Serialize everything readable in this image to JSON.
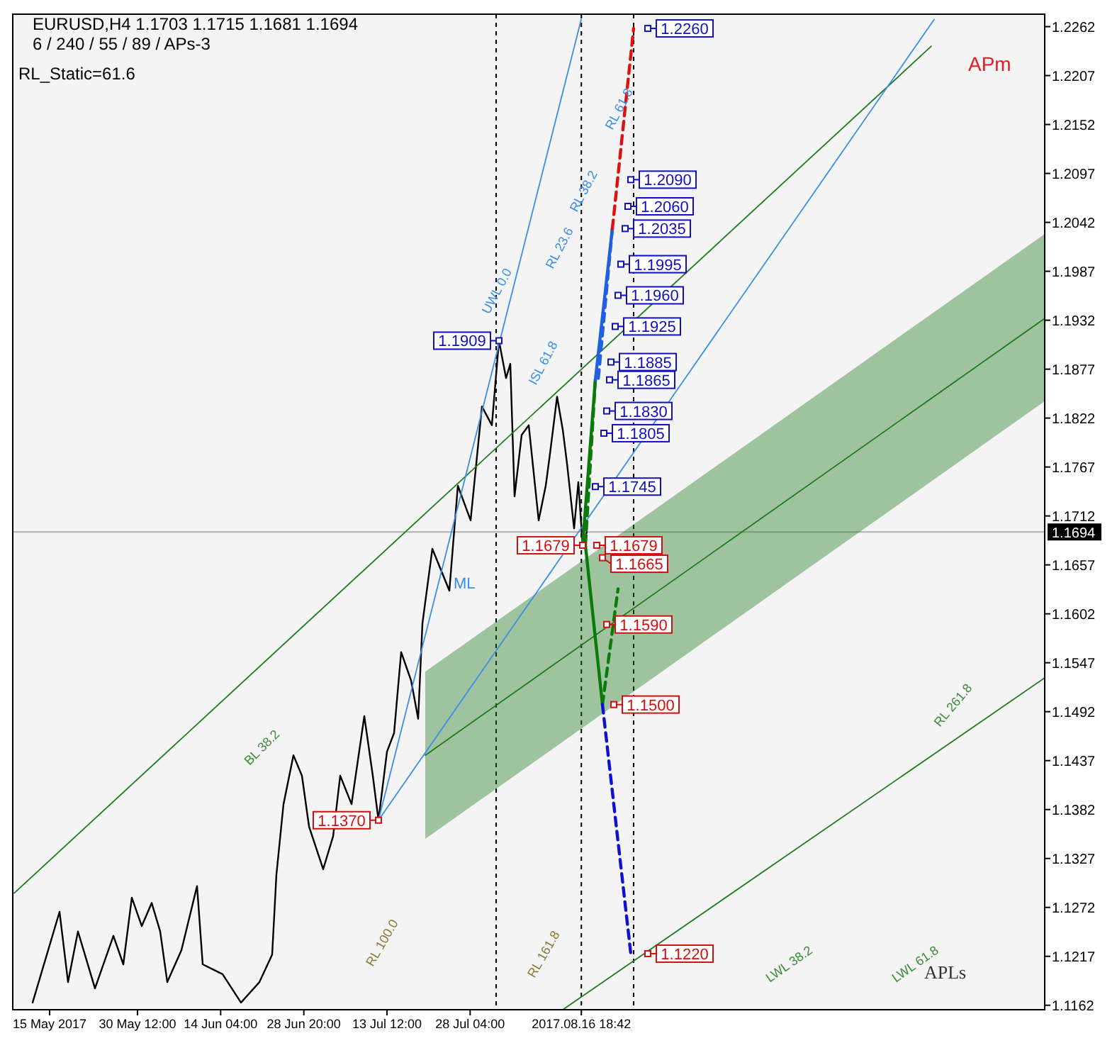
{
  "chart_data": {
    "type": "line",
    "title": "EURUSD,H4  1.1703 1.1715 1.1681 1.1694",
    "subtitle": "6 / 240 / 55 / 89 / APs-3",
    "annotations": [
      "RL_Static=61.6",
      "APm",
      "APLs",
      "UWL 0.0",
      "RL 61.8",
      "RL 38.2",
      "RL 23.6",
      "ISL 61.8",
      "ML",
      "BL 38.2",
      "RL 100.0",
      "RL 161.8",
      "RL 261.8",
      "LWL 38.2",
      "LWL 61.8"
    ],
    "xlim": [
      "2017-05-08T12:00",
      "2017-11-06T12:00"
    ],
    "ylim": [
      1.1157,
      1.2276
    ],
    "xticks": [
      {
        "value": "2017-05-15T00:00",
        "label": "15 May 2017"
      },
      {
        "value": "2017-05-30T12:00",
        "label": "30 May 12:00"
      },
      {
        "value": "2017-06-14T04:00",
        "label": "14 Jun 04:00"
      },
      {
        "value": "2017-06-28T20:00",
        "label": "28 Jun 20:00"
      },
      {
        "value": "2017-07-13T12:00",
        "label": "13 Jul 12:00"
      },
      {
        "value": "2017-07-28T04:00",
        "label": "28 Jul 04:00"
      },
      {
        "value": "2017-08-16T18:42",
        "label": "2017.08.16 18:42"
      }
    ],
    "yticks": [
      1.1162,
      1.1217,
      1.1272,
      1.1327,
      1.1382,
      1.1437,
      1.1492,
      1.1547,
      1.1602,
      1.1657,
      1.1712,
      1.1767,
      1.1822,
      1.1877,
      1.1932,
      1.1987,
      1.2042,
      1.2097,
      1.2152,
      1.2207,
      1.2262
    ],
    "ref_lines": [
      {
        "axis": "y",
        "value": 1.1694,
        "label": "1.1694",
        "color": "#b0b0b0",
        "line_style": "solid"
      },
      {
        "axis": "x",
        "value": "2017-08-01T18:00",
        "label": null,
        "color": "#000000",
        "line_style": "dashed"
      },
      {
        "axis": "x",
        "value": "2017-08-16T18:42",
        "label": null,
        "color": "#000000",
        "line_style": "dashed"
      },
      {
        "axis": "x",
        "value": "2017-08-26T00:00",
        "label": null,
        "color": "#000000",
        "line_style": "dashed"
      }
    ],
    "legend": false,
    "series": [
      {
        "color": "#000000",
        "line_style": "solid",
        "x": [
          "2017-05-12T00:00",
          "2017-05-16T18:00",
          "2017-05-18T06:00",
          "2017-05-20T00:00",
          "2017-05-23T00:00",
          "2017-05-26T06:00",
          "2017-05-28T00:00",
          "2017-05-29T12:00",
          "2017-05-31T06:00",
          "2017-06-02T00:00",
          "2017-06-03T12:00",
          "2017-06-04T18:00",
          "2017-06-07T06:00",
          "2017-06-10T00:00",
          "2017-06-11T00:00",
          "2017-06-14T12:00",
          "2017-06-17T18:00",
          "2017-06-21T00:00",
          "2017-06-23T06:00",
          "2017-06-24T00:00",
          "2017-06-25T06:00",
          "2017-06-27T00:00",
          "2017-06-28T12:00",
          "2017-06-29T18:00",
          "2017-07-02T06:00",
          "2017-07-04T00:00",
          "2017-07-05T06:00",
          "2017-07-07T06:00",
          "2017-07-09T12:00",
          "2017-07-11T00:00",
          "2017-07-12T00:00",
          "2017-07-13T12:00",
          "2017-07-14T18:00",
          "2017-07-16T00:00",
          "2017-07-17T18:00",
          "2017-07-19T00:00",
          "2017-07-19T18:00",
          "2017-07-21T12:00",
          "2017-07-24T12:00",
          "2017-07-26T00:00",
          "2017-07-28T06:00",
          "2017-07-30T06:00",
          "2017-08-01T00:00",
          "2017-08-02T06:00",
          "2017-08-03T12:00",
          "2017-08-04T06:00",
          "2017-08-05T00:00",
          "2017-08-06T06:00",
          "2017-08-07T12:00",
          "2017-08-09T06:00",
          "2017-08-10T12:00",
          "2017-08-11T06:00",
          "2017-08-12T12:00",
          "2017-08-13T12:00",
          "2017-08-14T06:00",
          "2017-08-15T12:00",
          "2017-08-16T06:00",
          "2017-08-17T00:00",
          "2017-08-17T18:00"
        ],
        "values": [
          1.1165,
          1.1267,
          1.1188,
          1.1245,
          1.1181,
          1.124,
          1.1208,
          1.1283,
          1.1251,
          1.1277,
          1.1245,
          1.1188,
          1.1224,
          1.1296,
          1.1208,
          1.1197,
          1.1165,
          1.1188,
          1.1219,
          1.1309,
          1.1388,
          1.1443,
          1.142,
          1.1363,
          1.1315,
          1.1352,
          1.142,
          1.1388,
          1.1487,
          1.142,
          1.137,
          1.1447,
          1.1468,
          1.1559,
          1.1527,
          1.1484,
          1.1591,
          1.1675,
          1.1628,
          1.1746,
          1.1707,
          1.1835,
          1.1814,
          1.1909,
          1.1867,
          1.1883,
          1.1734,
          1.1803,
          1.1814,
          1.1707,
          1.1746,
          1.1782,
          1.1846,
          1.1809,
          1.1771,
          1.1698,
          1.175,
          1.1679,
          1.1694
        ]
      },
      {
        "color": "#1e7b1e",
        "line_style": "solid",
        "x": [
          "2017-07-20T06:00",
          "2017-11-06T12:00"
        ],
        "values": [
          1.1443,
          1.1934
        ],
        "lower": [
          1.1349,
          1.1841
        ],
        "upper": [
          1.1537,
          1.2029
        ]
      },
      {
        "color": "#1e7b1e",
        "line_style": "solid",
        "x": [
          "2017-05-08T18:00",
          "2017-10-17T12:00"
        ],
        "values": [
          1.1288,
          1.224
        ]
      },
      {
        "color": "#1e7b1e",
        "line_style": "solid",
        "x": [
          "2017-08-13T12:00",
          "2017-11-06T12:00"
        ],
        "values": [
          1.1157,
          1.153
        ]
      },
      {
        "color": "#3a8ee6",
        "line_style": "solid",
        "x": [
          "2017-07-12T00:00",
          "2017-08-16T18:00"
        ],
        "values": [
          1.137,
          1.227
        ]
      },
      {
        "color": "#3a8ee6",
        "line_style": "solid",
        "x": [
          "2017-07-12T00:00",
          "2017-10-18T00:00"
        ],
        "values": [
          1.137,
          1.227
        ]
      },
      {
        "color": "#0b7a0b",
        "line_style": "solid",
        "x": [
          "2017-08-17T00:00",
          "2017-08-19T06:00"
        ],
        "values": [
          1.1679,
          1.1865
        ]
      },
      {
        "color": "#0b7a0b",
        "line_style": "solid",
        "x": [
          "2017-08-17T12:00",
          "2017-08-20T12:00"
        ],
        "values": [
          1.1679,
          1.15
        ]
      },
      {
        "color": "#0b7a0b",
        "line_style": "dashed",
        "x": [
          "2017-08-19T06:00",
          "2017-08-17T12:00"
        ],
        "values": [
          1.1865,
          1.1679
        ]
      },
      {
        "color": "#0b7a0b",
        "line_style": "dashed",
        "x": [
          "2017-08-20T12:00",
          "2017-08-23T06:00"
        ],
        "values": [
          1.15,
          1.163
        ]
      },
      {
        "color": "#2060e0",
        "line_style": "solid",
        "x": [
          "2017-08-19T06:00",
          "2017-08-22T06:00"
        ],
        "values": [
          1.1865,
          1.2035
        ]
      },
      {
        "color": "#2060e0",
        "line_style": "dashed",
        "x": [
          "2017-08-22T06:00",
          "2017-08-19T18:00"
        ],
        "values": [
          1.2035,
          1.1865
        ]
      },
      {
        "color": "#e01010",
        "line_style": "dashed",
        "x": [
          "2017-08-22T06:00",
          "2017-08-26T00:00"
        ],
        "values": [
          1.2035,
          1.226
        ]
      },
      {
        "color": "#1010d0",
        "line_style": "dashed",
        "x": [
          "2017-08-20T12:00",
          "2017-08-25T12:00"
        ],
        "values": [
          1.15,
          1.122
        ]
      },
      {
        "type": "scatter",
        "color": "#1010c0",
        "x": [
          "2017-08-28T12:00",
          "2017-08-25T12:00",
          "2017-08-25T00:00",
          "2017-08-24T12:00",
          "2017-08-23T18:00",
          "2017-08-23T06:00",
          "2017-08-22T18:00",
          "2017-08-22T00:00",
          "2017-08-21T18:00",
          "2017-08-21T06:00",
          "2017-08-20T18:00",
          "2017-08-19T06:00",
          "2017-08-02T06:00"
        ],
        "values": [
          1.226,
          1.209,
          1.206,
          1.2035,
          1.1995,
          1.196,
          1.1925,
          1.1885,
          1.1865,
          1.183,
          1.1805,
          1.1745,
          1.1909
        ],
        "value_labels": [
          "1.2260",
          "1.2090",
          "1.2060",
          "1.2035",
          "1.1995",
          "1.1960",
          "1.1925",
          "1.1885",
          "1.1865",
          "1.1830",
          "1.1805",
          "1.1745",
          "1.1909"
        ]
      },
      {
        "type": "scatter",
        "color": "#d01010",
        "x": [
          "2017-08-17T00:00",
          "2017-08-19T12:00",
          "2017-08-20T12:00",
          "2017-08-21T06:00",
          "2017-08-22T12:00",
          "2017-08-28T12:00",
          "2017-07-12T00:00"
        ],
        "values": [
          1.1679,
          1.1679,
          1.1665,
          1.159,
          1.15,
          1.122,
          1.137
        ],
        "value_labels": [
          "1.1679",
          "1.1679",
          "1.1665",
          "1.1590",
          "1.1500",
          "1.1220",
          "1.1370"
        ]
      }
    ]
  }
}
